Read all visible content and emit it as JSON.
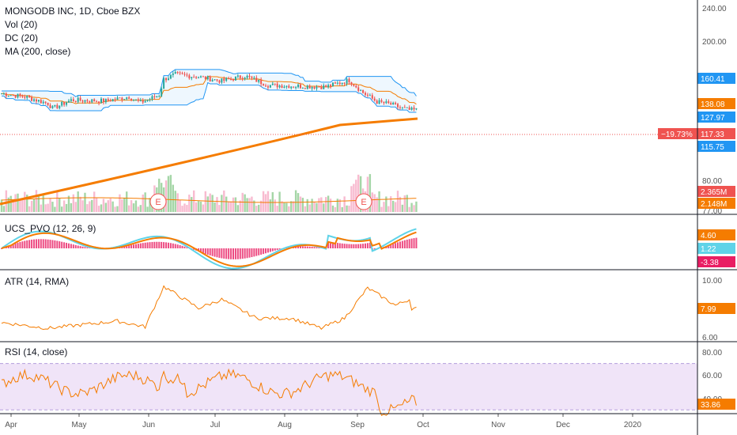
{
  "main_legend": {
    "symbol": "MONGODB INC, 1D, Cboe BZX",
    "vol": "Vol (20)",
    "dc": "DC (20)",
    "ma": "MA (200, close)"
  },
  "pvo_legend": "UCS_PVO (12, 26, 9)",
  "atr_legend": "ATR (14, RMA)",
  "rsi_legend": "RSI (14, close)",
  "earnings_marker": "E",
  "price_axis": {
    "ticks": [
      "240.00",
      "200.00",
      "160.41",
      "138.08",
      "127.97",
      "117.33",
      "115.75",
      "80.00",
      "2.365M",
      "2.148M",
      "77.00"
    ],
    "tags": [
      {
        "text": "160.41",
        "color": "#2196f3"
      },
      {
        "text": "138.08",
        "color": "#f57c00"
      },
      {
        "text": "127.97",
        "color": "#2196f3"
      },
      {
        "text": "117.33",
        "color": "#ef5350"
      },
      {
        "text": "115.75",
        "color": "#2196f3"
      },
      {
        "text": "2.365M",
        "color": "#ef5350"
      },
      {
        "text": "2.148M",
        "color": "#f57c00"
      }
    ],
    "change_badge": "−19.73%"
  },
  "pvo_axis": {
    "ticks": [
      "4.60",
      "1.22",
      "-3.38"
    ],
    "tag_colors": [
      "#f57c00",
      "#5fd3e8",
      "#e91e63"
    ]
  },
  "atr_axis": {
    "ticks": [
      "10.00",
      "7.99",
      "6.00"
    ],
    "tag_color": "#f57c00"
  },
  "rsi_axis": {
    "ticks": [
      "80.00",
      "60.00",
      "40.00",
      "33.86"
    ],
    "tag_color": "#f57c00"
  },
  "time_axis": [
    "Apr",
    "May",
    "Jun",
    "Jul",
    "Aug",
    "Sep",
    "Oct",
    "Nov",
    "Dec",
    "2020"
  ],
  "colors": {
    "up": "#26a69a",
    "down": "#ef5350",
    "donchian": "#2196f3",
    "ma": "#f57c00",
    "rsi_band": "#e9d8f5",
    "pvo_line": "#5fd3e8"
  }
}
